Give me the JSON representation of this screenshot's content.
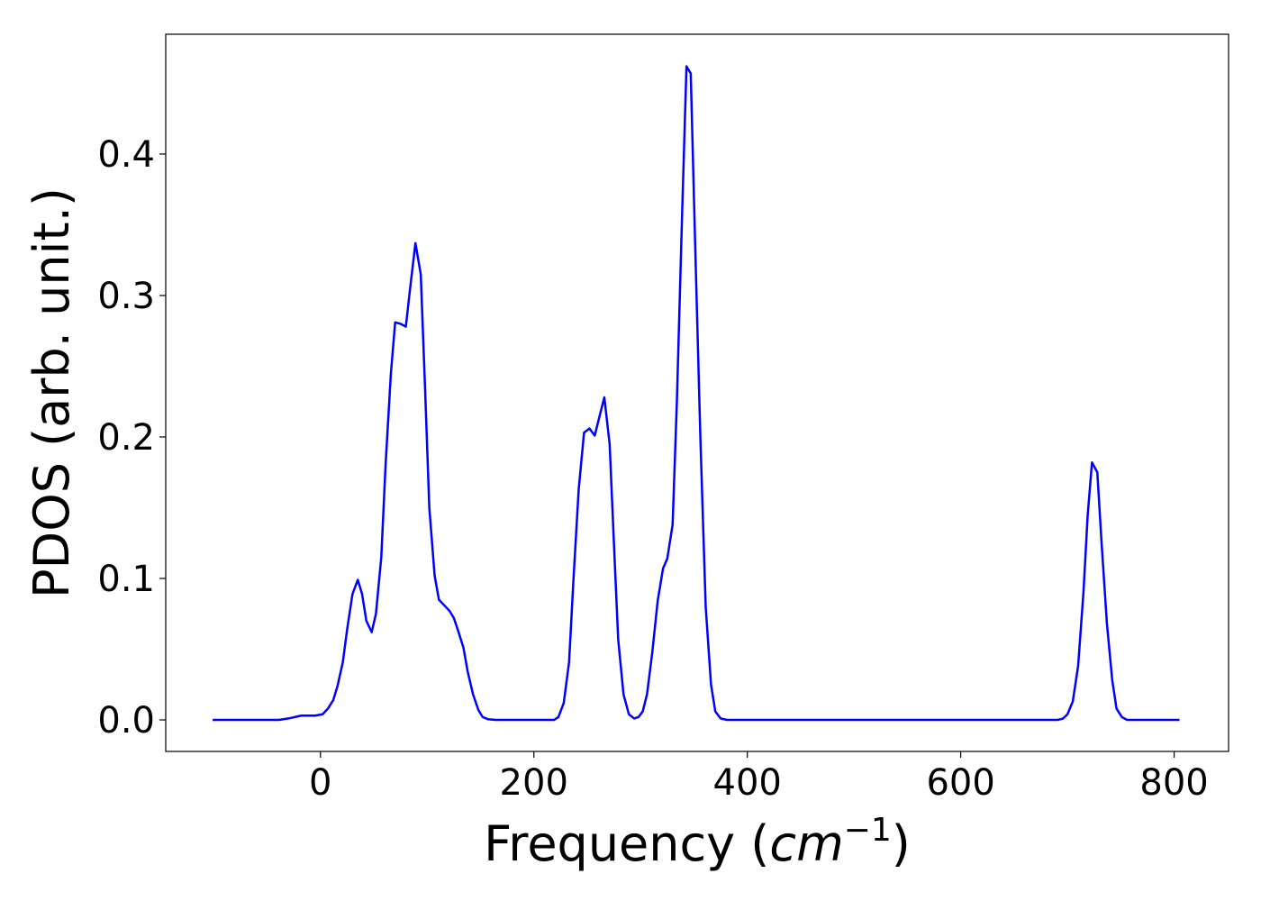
{
  "chart_data": {
    "type": "line",
    "xlabel": [
      "Frequency (",
      "cm",
      "−1",
      ")"
    ],
    "ylabel": "PDOS (arb. unit.)",
    "xlim": [
      -145,
      851
    ],
    "ylim": [
      -0.0223,
      0.4847
    ],
    "xticks": [
      0,
      200,
      400,
      600,
      800
    ],
    "yticks": [
      {
        "value": 0,
        "label": "0.0"
      },
      0.1,
      0.2,
      0.3,
      0.4
    ],
    "grid": false,
    "series": [
      {
        "color": "#0000ff",
        "x": [
          -101,
          -39,
          -30,
          -18,
          -5,
          2,
          7,
          12,
          16,
          21,
          25,
          30,
          35,
          39,
          43,
          48,
          52,
          57,
          61,
          66,
          70,
          75,
          80,
          84,
          89,
          94,
          98,
          102,
          107,
          111,
          116,
          121,
          125,
          129,
          134,
          138,
          143,
          148,
          152,
          157,
          164,
          219,
          223,
          228,
          233,
          237,
          242,
          247,
          252,
          257,
          262,
          266,
          271,
          275,
          279,
          284,
          289,
          294,
          298,
          302,
          306,
          311,
          316,
          321,
          325,
          330,
          334,
          339,
          343,
          347,
          351,
          356,
          361,
          366,
          370,
          375,
          381,
          691,
          696,
          700,
          705,
          710,
          715,
          719,
          723,
          728,
          732,
          737,
          742,
          746,
          751,
          756,
          805
        ],
        "values": [
          0,
          0,
          0.001,
          0.003,
          0.003,
          0.004,
          0.008,
          0.014,
          0.024,
          0.041,
          0.064,
          0.089,
          0.099,
          0.089,
          0.07,
          0.062,
          0.075,
          0.115,
          0.18,
          0.245,
          0.281,
          0.28,
          0.278,
          0.305,
          0.337,
          0.315,
          0.235,
          0.15,
          0.102,
          0.085,
          0.081,
          0.077,
          0.072,
          0.063,
          0.051,
          0.034,
          0.018,
          0.007,
          0.002,
          0.0005,
          0,
          0,
          0.002,
          0.012,
          0.041,
          0.098,
          0.163,
          0.203,
          0.206,
          0.201,
          0.216,
          0.228,
          0.195,
          0.125,
          0.057,
          0.018,
          0.004,
          0.001,
          0.002,
          0.006,
          0.018,
          0.048,
          0.084,
          0.107,
          0.114,
          0.138,
          0.225,
          0.36,
          0.462,
          0.457,
          0.34,
          0.2,
          0.08,
          0.025,
          0.006,
          0.001,
          0,
          0,
          0.001,
          0.004,
          0.013,
          0.038,
          0.09,
          0.145,
          0.182,
          0.175,
          0.125,
          0.068,
          0.028,
          0.008,
          0.002,
          0,
          0
        ]
      }
    ]
  }
}
